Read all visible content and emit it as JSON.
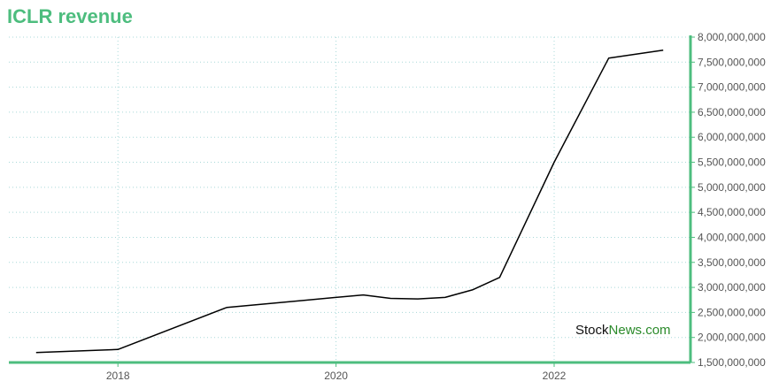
{
  "title": "ICLR revenue",
  "watermark": {
    "part1": "Stock",
    "part2": "News.com"
  },
  "colors": {
    "accent": "#4dbd7e",
    "line": "#000000",
    "grid": "#a8d8d8"
  },
  "chart_data": {
    "type": "line",
    "title": "ICLR revenue",
    "xlabel": "",
    "ylabel": "",
    "x_ticks": [
      "2018",
      "2020",
      "2022"
    ],
    "x_tick_values": [
      2018,
      2020,
      2022
    ],
    "y_ticks": [
      "1,500,000,000",
      "2,000,000,000",
      "2,500,000,000",
      "3,000,000,000",
      "3,500,000,000",
      "4,000,000,000",
      "4,500,000,000",
      "5,000,000,000",
      "5,500,000,000",
      "6,000,000,000",
      "6,500,000,000",
      "7,000,000,000",
      "7,500,000,000",
      "8,000,000,000"
    ],
    "y_tick_values": [
      1500000000,
      2000000000,
      2500000000,
      3000000000,
      3500000000,
      4000000000,
      4500000000,
      5000000000,
      5500000000,
      6000000000,
      6500000000,
      7000000000,
      7500000000,
      8000000000
    ],
    "xlim": [
      2017.0,
      2023.25
    ],
    "ylim": [
      1500000000,
      8000000000
    ],
    "grid": true,
    "series": [
      {
        "x": [
          2017.25,
          2018.0,
          2019.0,
          2019.75,
          2020.25,
          2020.5,
          2020.75,
          2021.0,
          2021.25,
          2021.5,
          2022.0,
          2022.5,
          2023.0
        ],
        "y": [
          1700000000,
          1760000000,
          2600000000,
          2750000000,
          2850000000,
          2780000000,
          2770000000,
          2800000000,
          2950000000,
          3200000000,
          5500000000,
          7580000000,
          7740000000
        ]
      }
    ]
  }
}
